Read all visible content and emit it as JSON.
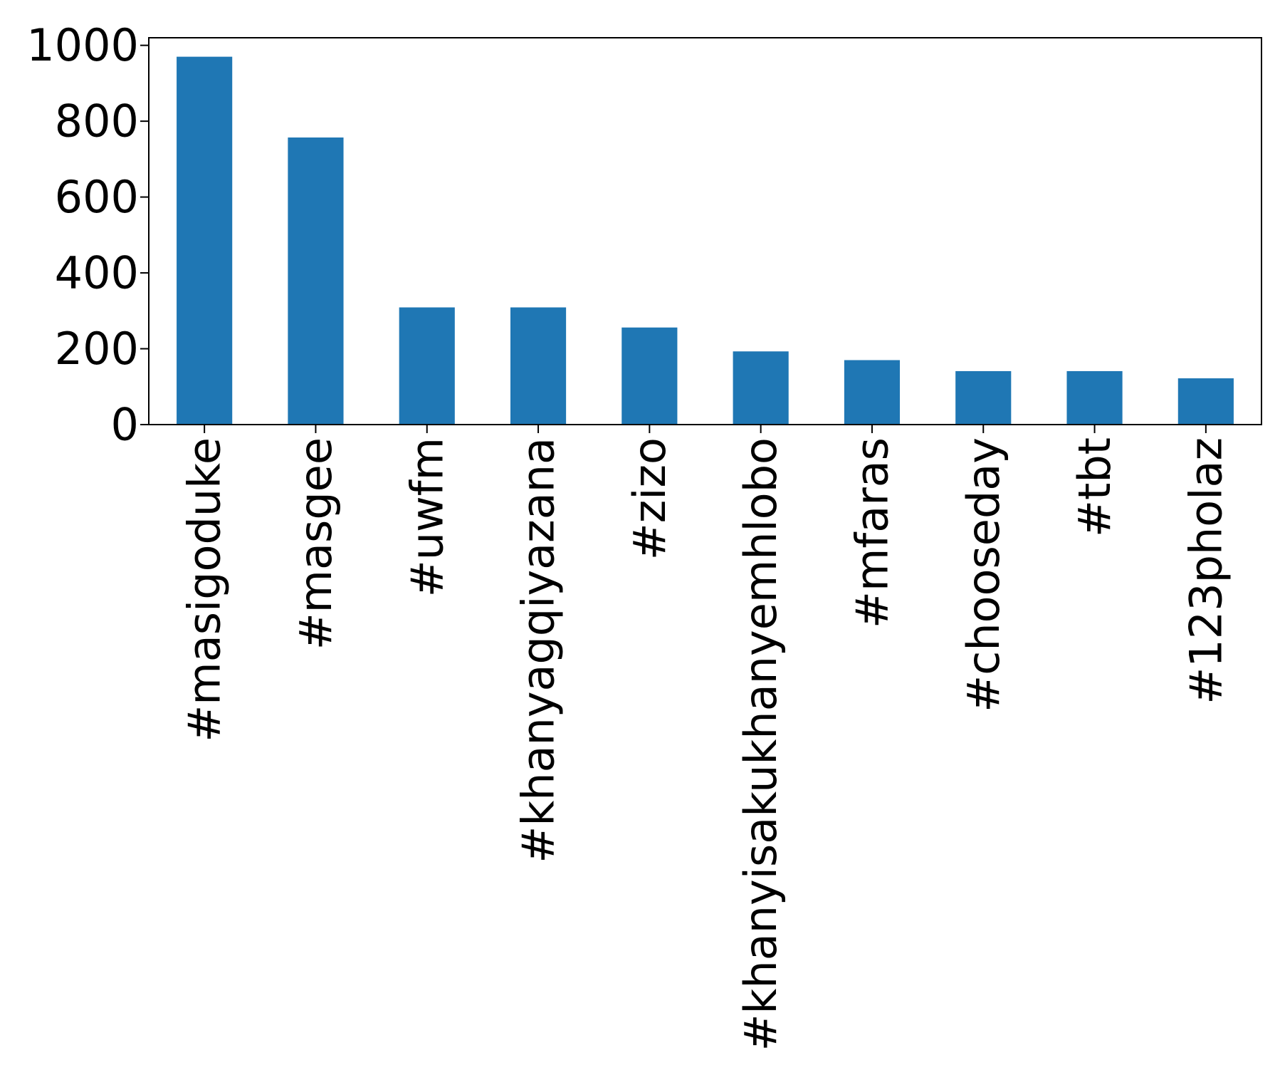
{
  "chart_data": {
    "type": "bar",
    "title": "",
    "xlabel": "",
    "ylabel": "",
    "categories": [
      "#masigoduke",
      "#masgee",
      "#uwfm",
      "#khanyagqiyazana",
      "#zizo",
      "#khanyisakukhanyemhlobo",
      "#mfaras",
      "#chooseday",
      "#tbt",
      "#123pholaz"
    ],
    "series": [
      {
        "values": [
          970,
          757,
          309,
          309,
          256,
          193,
          170,
          141,
          141,
          122
        ],
        "color": "#1f77b4"
      }
    ],
    "ylim": [
      0,
      1020
    ],
    "yticks": [
      0,
      200,
      400,
      600,
      800,
      1000
    ],
    "ytick_labels": [
      "0",
      "200",
      "400",
      "600",
      "800",
      "1000"
    ],
    "grid": false,
    "legend": "none"
  }
}
